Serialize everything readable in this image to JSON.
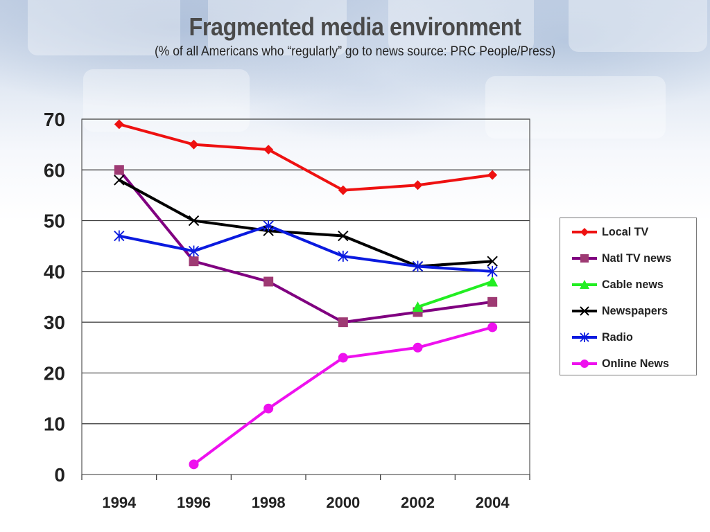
{
  "slide": {
    "title": "Fragmented media environment",
    "subtitle": "(% of all Americans who “regularly” go to news source: PRC People/Press)"
  },
  "chart_data": {
    "type": "line",
    "title": "",
    "xlabel": "",
    "ylabel": "",
    "x": [
      1994,
      1996,
      1998,
      2000,
      2002,
      2004
    ],
    "ylim": [
      0,
      70
    ],
    "yticks": [
      0,
      10,
      20,
      30,
      40,
      50,
      60,
      70
    ],
    "grid": "horizontal",
    "legend": "right",
    "series": [
      {
        "name": "Local TV",
        "color": "#ee1111",
        "marker": "diamond",
        "values": [
          69,
          65,
          64,
          56,
          57,
          59
        ]
      },
      {
        "name": "Natl TV news",
        "color": "#800080",
        "marker": "square",
        "marker_color": "#9e3a73",
        "values": [
          60,
          42,
          38,
          30,
          32,
          34
        ]
      },
      {
        "name": "Cable news",
        "color": "#22ee22",
        "marker": "triangle",
        "values": [
          null,
          null,
          null,
          null,
          33,
          38
        ]
      },
      {
        "name": "Newspapers",
        "color": "#000000",
        "marker": "x",
        "values": [
          58,
          50,
          48,
          47,
          41,
          42
        ]
      },
      {
        "name": "Radio",
        "color": "#0a1adf",
        "marker": "asterisk",
        "values": [
          47,
          44,
          49,
          43,
          41,
          40
        ]
      },
      {
        "name": "Online News",
        "color": "#ee11ee",
        "marker": "circle",
        "values": [
          null,
          2,
          13,
          23,
          25,
          29
        ]
      }
    ]
  }
}
